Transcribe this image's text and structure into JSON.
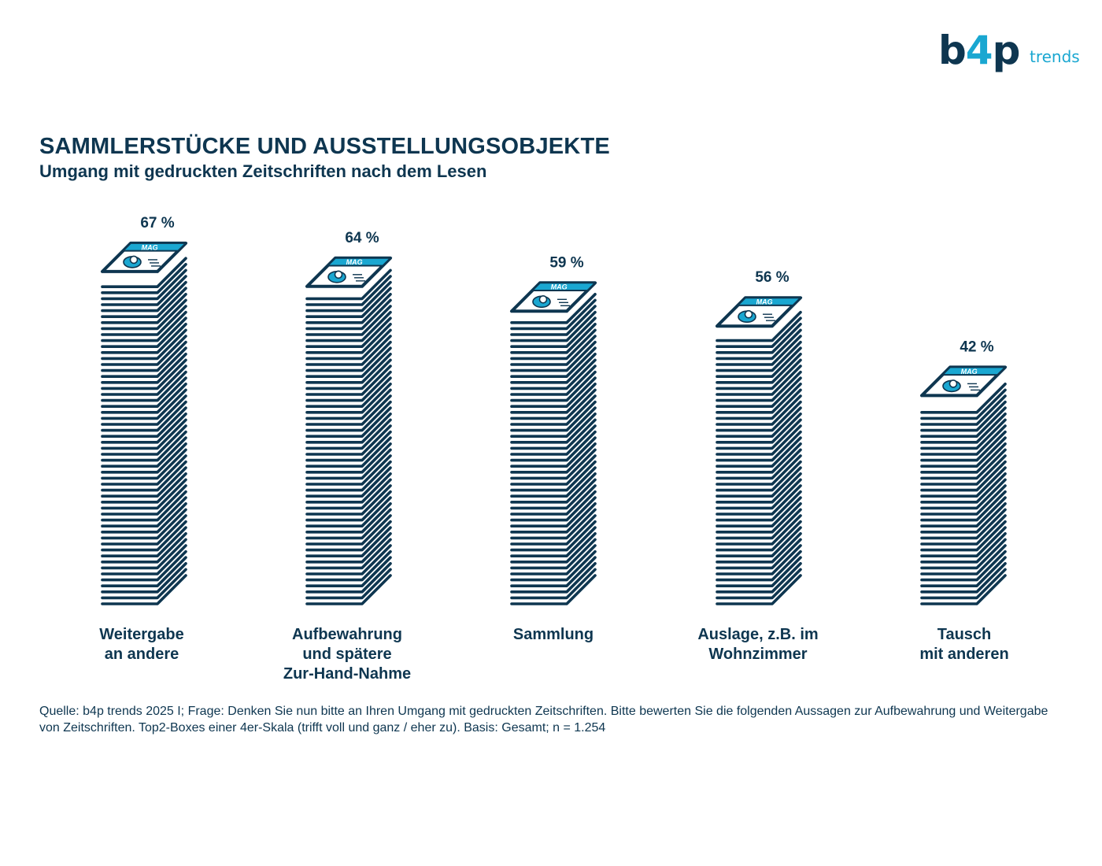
{
  "logo": {
    "b": "b",
    "four": "4",
    "p": "p",
    "suffix": "trends"
  },
  "chart_data": {
    "type": "bar",
    "title": "SAMMLERSTÜCKE UND AUSSTELLUNGSOBJEKTE",
    "subtitle": "Umgang mit gedruckten Zeitschriften nach dem Lesen",
    "categories": [
      [
        "Weitergabe",
        "an andere"
      ],
      [
        "Aufbewahrung",
        "und spätere",
        "Zur-Hand-Nahme"
      ],
      [
        "Sammlung"
      ],
      [
        "Auslage, z.B. im",
        "Wohnzimmer"
      ],
      [
        "Tausch",
        "mit anderen"
      ]
    ],
    "values": [
      67,
      64,
      59,
      56,
      42
    ],
    "value_labels": [
      "67 %",
      "64 %",
      "59 %",
      "56 %",
      "42 %"
    ],
    "unit": "%",
    "cover_text": "MAG",
    "grid": false,
    "legend": "none",
    "colors": {
      "stack": "#0e3650",
      "accent": "#1aa7d1"
    }
  },
  "footnote": "Quelle: b4p trends 2025 I; Frage: Denken Sie nun bitte an Ihren Umgang mit gedruckten Zeitschriften. Bitte bewerten Sie die folgenden Aussagen zur Aufbewahrung und Weitergabe von Zeitschriften. Top2-Boxes einer 4er-Skala (trifft voll und ganz / eher zu). Basis: Gesamt; n = 1.254"
}
